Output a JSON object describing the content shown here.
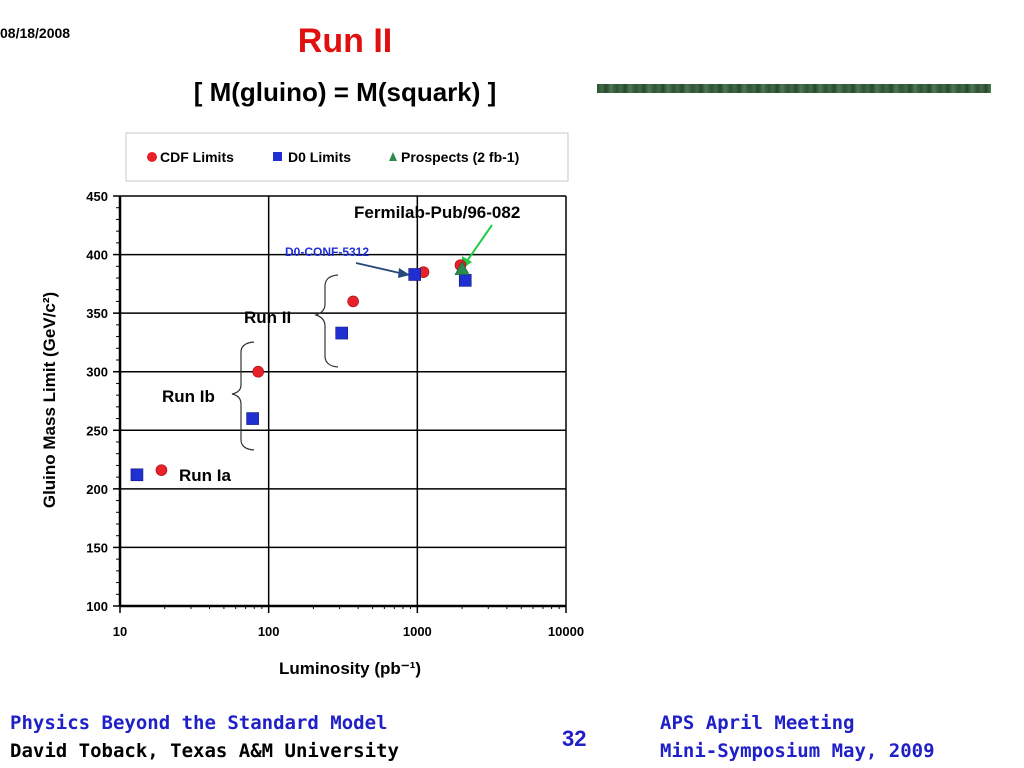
{
  "slide": {
    "date": "08/18/2008",
    "title": "Run II",
    "subtitle": "[ M(gluino) = M(squark) ]",
    "page_number": "32",
    "footer_left_line1": "Physics Beyond the Standard Model",
    "footer_left_line2": "David Toback, Texas A&M University",
    "footer_right_line1": "APS April Meeting",
    "footer_right_line2": "Mini-Symposium May, 2009"
  },
  "chart_data": {
    "type": "scatter",
    "title": "",
    "xlabel": "Luminosity (pb⁻¹)",
    "ylabel": "Gluino Mass Limit (GeV/c²)",
    "xscale": "log",
    "xlim": [
      10,
      10000
    ],
    "ylim": [
      100,
      450
    ],
    "xticks": [
      "10",
      "100",
      "1000",
      "10000"
    ],
    "yticks": [
      "100",
      "150",
      "200",
      "250",
      "300",
      "350",
      "400",
      "450"
    ],
    "grid": true,
    "legend_position": "top",
    "series": [
      {
        "name": "CDF Limits",
        "marker": "circle",
        "color": "#e8202a",
        "points": [
          {
            "x": 19,
            "y": 216
          },
          {
            "x": 85,
            "y": 300
          },
          {
            "x": 370,
            "y": 360
          },
          {
            "x": 1100,
            "y": 385
          },
          {
            "x": 1950,
            "y": 391
          }
        ]
      },
      {
        "name": "D0 Limits",
        "marker": "square",
        "color": "#1f2fd0",
        "points": [
          {
            "x": 13,
            "y": 212
          },
          {
            "x": 78,
            "y": 260
          },
          {
            "x": 310,
            "y": 333
          },
          {
            "x": 960,
            "y": 383
          },
          {
            "x": 2100,
            "y": 378
          }
        ]
      },
      {
        "name": "Prospects (2 fb-1)",
        "marker": "triangle",
        "color": "#2e8b4f",
        "points": [
          {
            "x": 2000,
            "y": 388
          }
        ]
      }
    ],
    "annotations": {
      "run_ia": "Run Ia",
      "run_ib": "Run Ib",
      "run_ii": "Run II",
      "d0_conf": "D0-CONF-5312",
      "fermilab_pub": "Fermilab-Pub/96-082"
    }
  }
}
